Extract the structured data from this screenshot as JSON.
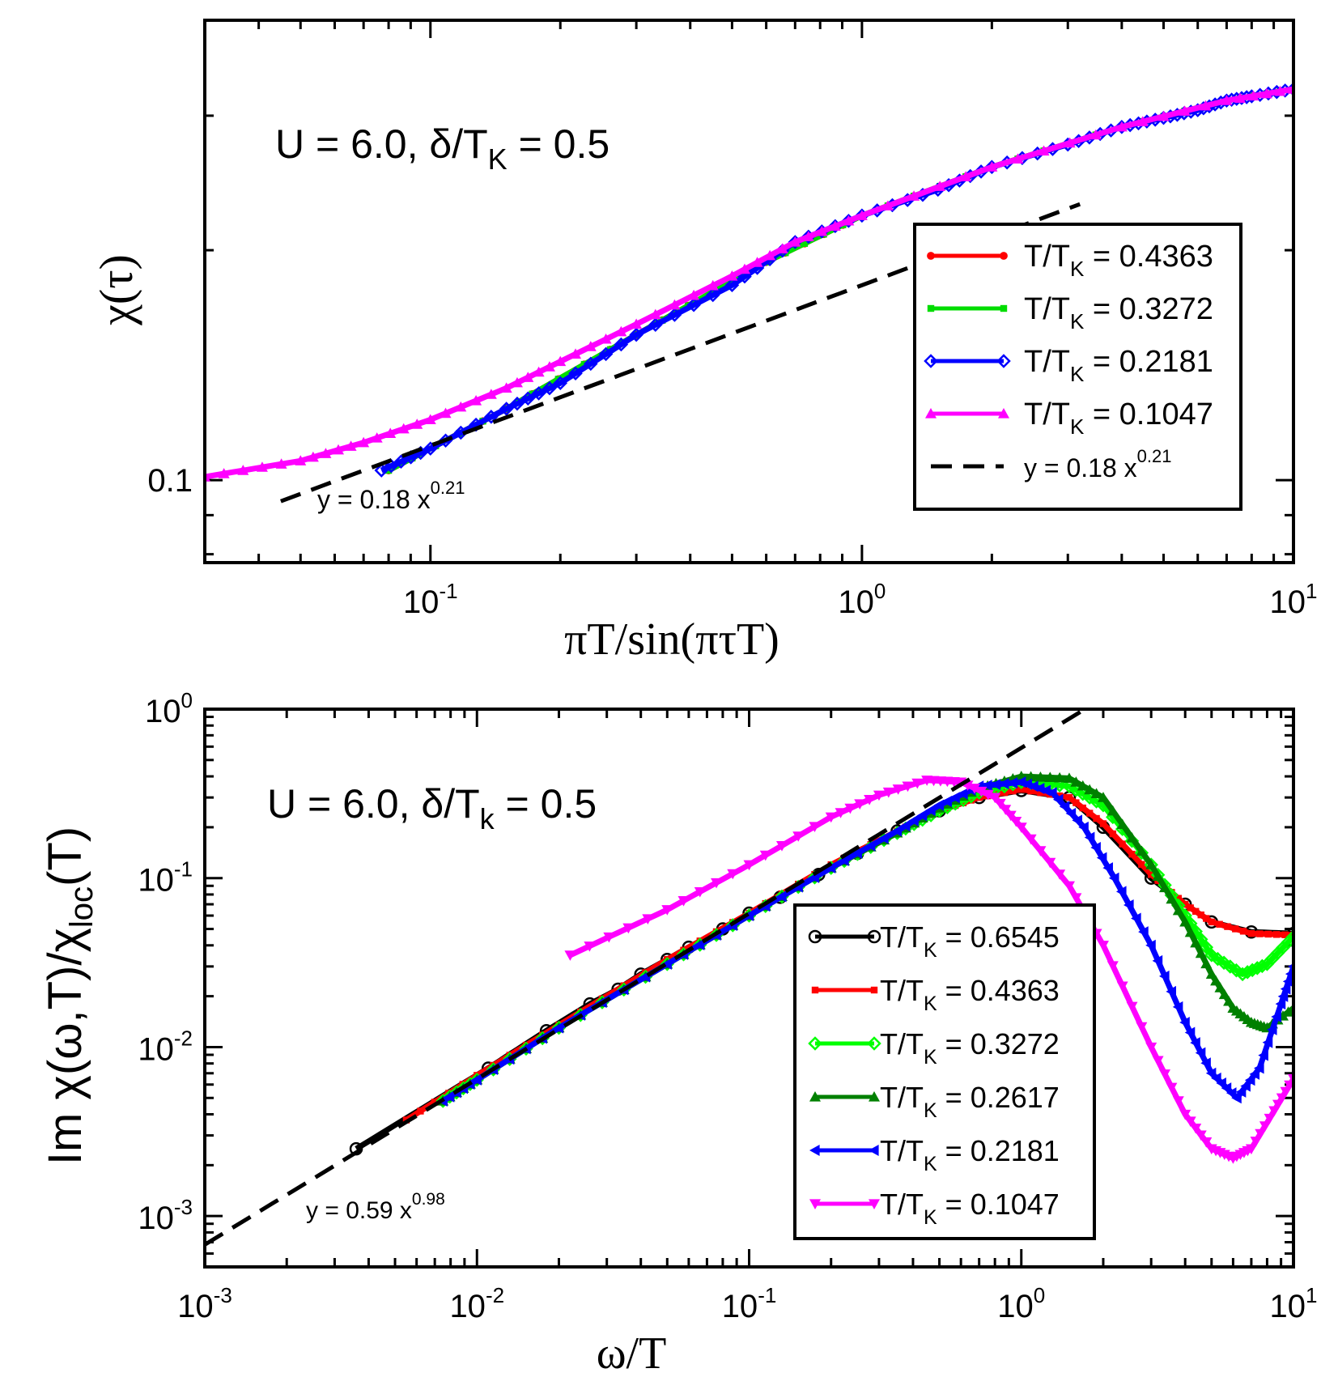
{
  "chart_data": [
    {
      "type": "line",
      "scale": "log-log",
      "annotation": "U = 6.0, δ/TK = 0.5",
      "annotation_parts": {
        "main": "U = 6.0, δ/T",
        "sub": "K",
        "tail": " = 0.5"
      },
      "xlabel": "πT/sin(πτT)",
      "ylabel": "χ(τ)",
      "xlim": [
        0.03,
        10
      ],
      "ylim": [
        0.078,
        0.4
      ],
      "x_ticks": [
        {
          "mant": "10",
          "exp": "-1",
          "value": 0.1
        },
        {
          "mant": "10",
          "exp": "0",
          "value": 1
        },
        {
          "mant": "10",
          "exp": "1",
          "value": 10
        }
      ],
      "y_ticks": [
        {
          "label": "0.1",
          "value": 0.1
        }
      ],
      "fit_label": {
        "main": "y = 0.18 x",
        "exp": "0.21"
      },
      "legend_position": "lower-right",
      "series": [
        {
          "name": "T/TK = 0.4363",
          "name_main": "T/T",
          "name_sub": "K",
          "name_tail": " = 0.4363",
          "color": "#ff0000",
          "marker": "circle",
          "x": [
            0.08,
            0.15,
            0.3,
            0.6,
            1.0,
            2.0,
            4.0,
            7.0,
            10.0
          ],
          "y": [
            0.103,
            0.124,
            0.155,
            0.193,
            0.222,
            0.257,
            0.29,
            0.314,
            0.325
          ]
        },
        {
          "name": "T/TK = 0.3272",
          "name_main": "T/T",
          "name_sub": "K",
          "name_tail": " = 0.3272",
          "color": "#00dd00",
          "marker": "square",
          "x": [
            0.08,
            0.15,
            0.3,
            0.6,
            1.0,
            2.0,
            4.0,
            7.0,
            10.0
          ],
          "y": [
            0.103,
            0.124,
            0.155,
            0.193,
            0.222,
            0.257,
            0.29,
            0.314,
            0.325
          ]
        },
        {
          "name": "T/TK = 0.2181",
          "name_main": "T/T",
          "name_sub": "K",
          "name_tail": " = 0.2181",
          "color": "#0000ff",
          "marker": "diamond",
          "x": [
            0.077,
            0.1,
            0.15,
            0.2,
            0.3,
            0.5,
            0.7,
            1.0,
            1.5,
            2.0,
            3.0,
            4.0,
            5.0,
            6.0,
            7.0,
            8.0,
            10.0
          ],
          "y": [
            0.103,
            0.11,
            0.124,
            0.134,
            0.155,
            0.18,
            0.205,
            0.222,
            0.24,
            0.257,
            0.275,
            0.29,
            0.298,
            0.305,
            0.314,
            0.318,
            0.325
          ]
        },
        {
          "name": "T/TK = 0.1047",
          "name_main": "T/T",
          "name_sub": "K",
          "name_tail": " = 0.1047",
          "color": "#ff00ff",
          "marker": "triangle-up",
          "x": [
            0.03,
            0.05,
            0.07,
            0.1,
            0.15,
            0.2,
            0.3,
            0.5,
            0.7,
            1.0,
            2.0,
            4.0,
            7.0,
            10.0
          ],
          "y": [
            0.101,
            0.106,
            0.112,
            0.12,
            0.132,
            0.143,
            0.16,
            0.185,
            0.205,
            0.222,
            0.257,
            0.29,
            0.314,
            0.325
          ]
        },
        {
          "name": "y = 0.18 x^0.21",
          "name_main": "y = 0.18 x",
          "name_exp": "0.21",
          "color": "#000000",
          "dashed": true,
          "fit": {
            "a": 0.18,
            "b": 0.21
          },
          "x_range": [
            0.045,
            3.2
          ]
        }
      ]
    },
    {
      "type": "line",
      "scale": "log-log",
      "annotation": "U = 6.0, δ/Tk = 0.5",
      "annotation_parts": {
        "main": "U = 6.0, δ/T",
        "sub": "k",
        "tail": " = 0.5"
      },
      "xlabel": "ω/T",
      "ylabel": "Im χ(ω,T)/χloc(T)",
      "ylabel_parts": {
        "main": "Im χ(ω,T)/χ",
        "sub": "loc",
        "tail": "(T)"
      },
      "xlim": [
        0.001,
        10
      ],
      "ylim": [
        0.0005,
        1
      ],
      "x_ticks": [
        {
          "mant": "10",
          "exp": "-3",
          "value": 0.001
        },
        {
          "mant": "10",
          "exp": "-2",
          "value": 0.01
        },
        {
          "mant": "10",
          "exp": "-1",
          "value": 0.1
        },
        {
          "mant": "10",
          "exp": "0",
          "value": 1
        },
        {
          "mant": "10",
          "exp": "1",
          "value": 10
        }
      ],
      "y_ticks": [
        {
          "mant": "10",
          "exp": "-3",
          "value": 0.001
        },
        {
          "mant": "10",
          "exp": "-2",
          "value": 0.01
        },
        {
          "mant": "10",
          "exp": "-1",
          "value": 0.1
        },
        {
          "mant": "10",
          "exp": "0",
          "value": 1
        }
      ],
      "fit_label": {
        "main": "y = 0.59 x",
        "exp": "0.98"
      },
      "legend_position": "lower-right",
      "series": [
        {
          "name": "T/TK = 0.6545",
          "name_main": "T/T",
          "name_sub": "K",
          "name_tail": " = 0.6545",
          "color": "#000000",
          "marker": "open-circle",
          "x": [
            0.0036,
            0.011,
            0.018,
            0.026,
            0.033,
            0.04,
            0.05,
            0.06,
            0.08,
            0.1,
            0.13,
            0.18,
            0.25,
            0.35,
            0.5,
            0.7,
            1.0,
            1.5,
            2.0,
            3.0,
            4.0,
            5.0,
            7.0,
            10.0
          ],
          "y": [
            0.0025,
            0.0075,
            0.0125,
            0.018,
            0.022,
            0.027,
            0.033,
            0.039,
            0.05,
            0.062,
            0.077,
            0.105,
            0.14,
            0.19,
            0.25,
            0.3,
            0.33,
            0.3,
            0.2,
            0.1,
            0.07,
            0.055,
            0.048,
            0.047
          ]
        },
        {
          "name": "T/TK = 0.4363",
          "name_main": "T/T",
          "name_sub": "K",
          "name_tail": " = 0.4363",
          "color": "#ff0000",
          "marker": "square",
          "x": [
            0.0055,
            0.01,
            0.02,
            0.05,
            0.1,
            0.2,
            0.35,
            0.5,
            0.7,
            1.0,
            1.5,
            2.0,
            3.0,
            4.0,
            5.0,
            7.0,
            10.0
          ],
          "y": [
            0.0037,
            0.0068,
            0.0135,
            0.033,
            0.062,
            0.12,
            0.19,
            0.25,
            0.3,
            0.335,
            0.3,
            0.21,
            0.105,
            0.07,
            0.055,
            0.047,
            0.046
          ]
        },
        {
          "name": "T/TK = 0.3272",
          "name_main": "T/T",
          "name_sub": "K",
          "name_tail": " = 0.3272",
          "color": "#00ff00",
          "marker": "diamond",
          "x": [
            0.0075,
            0.01,
            0.02,
            0.05,
            0.1,
            0.2,
            0.35,
            0.5,
            0.7,
            1.0,
            1.5,
            2.0,
            3.0,
            4.0,
            5.0,
            6.5,
            8.0,
            10.0
          ],
          "y": [
            0.0048,
            0.0064,
            0.013,
            0.031,
            0.06,
            0.115,
            0.185,
            0.25,
            0.32,
            0.37,
            0.35,
            0.27,
            0.12,
            0.06,
            0.035,
            0.027,
            0.031,
            0.045
          ]
        },
        {
          "name": "T/TK = 0.2617",
          "name_main": "T/T",
          "name_sub": "K",
          "name_tail": " = 0.2617",
          "color": "#008000",
          "marker": "triangle-up",
          "x": [
            0.0075,
            0.01,
            0.02,
            0.05,
            0.1,
            0.2,
            0.35,
            0.5,
            0.7,
            1.0,
            1.5,
            2.0,
            3.0,
            4.0,
            5.0,
            6.0,
            7.0,
            8.0,
            10.0
          ],
          "y": [
            0.0048,
            0.0064,
            0.013,
            0.031,
            0.06,
            0.115,
            0.185,
            0.26,
            0.34,
            0.4,
            0.39,
            0.3,
            0.12,
            0.055,
            0.027,
            0.017,
            0.014,
            0.013,
            0.017
          ]
        },
        {
          "name": "T/TK = 0.2181",
          "name_main": "T/T",
          "name_sub": "K",
          "name_tail": " = 0.2181",
          "color": "#0000ff",
          "marker": "triangle-left",
          "x": [
            0.0075,
            0.01,
            0.02,
            0.05,
            0.1,
            0.2,
            0.35,
            0.5,
            0.7,
            1.0,
            1.3,
            1.7,
            2.2,
            3.0,
            4.0,
            5.0,
            6.2,
            7.5,
            9.0,
            10.0
          ],
          "y": [
            0.0048,
            0.0064,
            0.013,
            0.031,
            0.06,
            0.115,
            0.19,
            0.27,
            0.35,
            0.37,
            0.32,
            0.2,
            0.1,
            0.04,
            0.014,
            0.007,
            0.005,
            0.0075,
            0.018,
            0.03
          ]
        },
        {
          "name": "T/TK = 0.1047",
          "name_main": "T/T",
          "name_sub": "K",
          "name_tail": " = 0.1047",
          "color": "#ff00ff",
          "marker": "triangle-down",
          "x": [
            0.022,
            0.05,
            0.1,
            0.2,
            0.3,
            0.45,
            0.6,
            0.8,
            1.0,
            1.5,
            2.0,
            3.0,
            4.0,
            5.0,
            6.0,
            7.0,
            8.5,
            10.0
          ],
          "y": [
            0.035,
            0.065,
            0.12,
            0.23,
            0.31,
            0.38,
            0.37,
            0.3,
            0.2,
            0.09,
            0.04,
            0.01,
            0.004,
            0.0025,
            0.0022,
            0.0025,
            0.0042,
            0.0065
          ]
        },
        {
          "name": "y = 0.59 x^0.98",
          "name_main": "y = 0.59 x",
          "name_exp": "0.98",
          "color": "#000000",
          "dashed": true,
          "fit": {
            "a": 0.59,
            "b": 0.98
          },
          "x_range": [
            0.001,
            2.0
          ],
          "in_legend": false
        }
      ]
    }
  ]
}
